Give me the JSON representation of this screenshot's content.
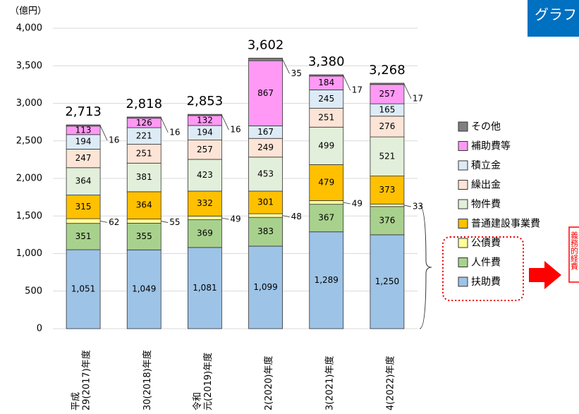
{
  "chart_data": {
    "type": "stacked_bar",
    "y_unit": "（億円）",
    "badge": "グラフ",
    "annotation": "義務的経費",
    "categories": [
      [
        "平成",
        "29(2017)年度"
      ],
      [
        "30(2018)年度"
      ],
      [
        "令和",
        "元(2019)年度"
      ],
      [
        "2(2020)年度"
      ],
      [
        "3(2021)年度"
      ],
      [
        "4(2022)年度"
      ]
    ],
    "series": [
      {
        "name": "扶助費",
        "color": "#9dc3e6",
        "values": [
          1051,
          1049,
          1081,
          1099,
          1289,
          1250
        ],
        "value_labels": [
          "1,051",
          "1,049",
          "1,081",
          "1,099",
          "1,289",
          "1,250"
        ]
      },
      {
        "name": "人件費",
        "color": "#a9d18e",
        "values": [
          351,
          355,
          369,
          383,
          367,
          376
        ]
      },
      {
        "name": "公債費",
        "color": "#ffff99",
        "values": [
          62,
          55,
          49,
          48,
          49,
          33
        ]
      },
      {
        "name": "普通建設事業費",
        "color": "#ffc000",
        "values": [
          315,
          364,
          332,
          301,
          479,
          373
        ]
      },
      {
        "name": "物件費",
        "color": "#e2efda",
        "values": [
          364,
          381,
          423,
          453,
          499,
          521
        ]
      },
      {
        "name": "繰出金",
        "color": "#fce4d6",
        "values": [
          247,
          251,
          257,
          249,
          251,
          276
        ]
      },
      {
        "name": "積立金",
        "color": "#ddebf7",
        "values": [
          194,
          221,
          194,
          167,
          245,
          165
        ]
      },
      {
        "name": "補助費等",
        "color": "#ff99f5",
        "values": [
          113,
          126,
          132,
          867,
          184,
          257
        ]
      },
      {
        "name": "その他",
        "color": "#808080",
        "values": [
          16,
          16,
          16,
          35,
          17,
          17
        ]
      }
    ],
    "totals": [
      2713,
      2818,
      2853,
      3602,
      3380,
      3268
    ],
    "total_labels": [
      "2,713",
      "2,818",
      "2,853",
      "3,602",
      "3,380",
      "3,268"
    ],
    "ylim": [
      0,
      4000
    ],
    "yticks": [
      0,
      500,
      {
        "value": 1000,
        "label": "1,000"
      },
      {
        "value": 1500,
        "label": "1,500"
      },
      {
        "value": 2000,
        "label": "2,000"
      },
      {
        "value": 2500,
        "label": "2,500"
      },
      {
        "value": 3000,
        "label": "3,000"
      },
      {
        "value": 3500,
        "label": "3,500"
      },
      {
        "value": 4000,
        "label": "4,000"
      }
    ],
    "grid": true
  }
}
